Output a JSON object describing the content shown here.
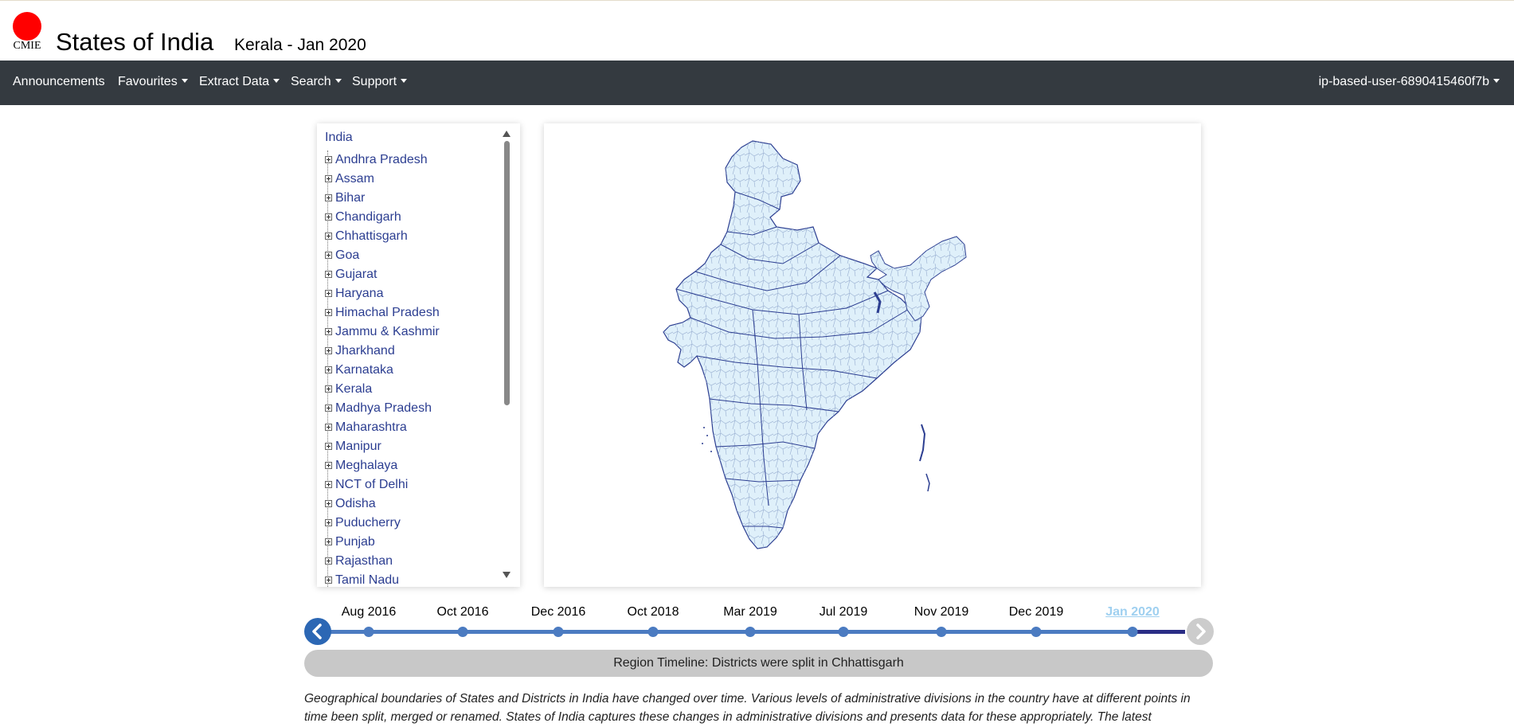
{
  "header": {
    "logo_text": "CMIE",
    "title": "States of India",
    "subtitle": "Kerala - Jan 2020",
    "colors": {
      "logo": "#ff0000"
    }
  },
  "navbar": {
    "items": [
      {
        "label": "Announcements",
        "dropdown": false
      },
      {
        "label": "Favourites",
        "dropdown": true
      },
      {
        "label": "Extract Data",
        "dropdown": true
      },
      {
        "label": "Search",
        "dropdown": true
      },
      {
        "label": "Support",
        "dropdown": true
      }
    ],
    "user": {
      "label": "ip-based-user-6890415460f7b",
      "dropdown": true
    },
    "colors": {
      "background": "#343a40",
      "text": "#ffffff"
    }
  },
  "tree": {
    "root": "India",
    "items": [
      "Andhra Pradesh",
      "Assam",
      "Bihar",
      "Chandigarh",
      "Chhattisgarh",
      "Goa",
      "Gujarat",
      "Haryana",
      "Himachal Pradesh",
      "Jammu & Kashmir",
      "Jharkhand",
      "Karnataka",
      "Kerala",
      "Madhya Pradesh",
      "Maharashtra",
      "Manipur",
      "Meghalaya",
      "NCT of Delhi",
      "Odisha",
      "Puducherry",
      "Punjab",
      "Rajasthan",
      "Tamil Nadu"
    ],
    "expander_icon": "plus-square-icon",
    "colors": {
      "link": "#2c3e91"
    }
  },
  "map": {
    "colors": {
      "fill": "#dff0fa",
      "district_border": "#9fb5d5",
      "state_border": "#2c3e91"
    }
  },
  "timeline": {
    "points": [
      {
        "label": "Aug 2016"
      },
      {
        "label": "Oct 2016"
      },
      {
        "label": "Dec 2016"
      },
      {
        "label": "Oct 2018"
      },
      {
        "label": "Mar 2019"
      },
      {
        "label": "Jul 2019"
      },
      {
        "label": "Nov 2019"
      },
      {
        "label": "Dec 2019"
      },
      {
        "label": "Jan 2020"
      }
    ],
    "active": "Jan 2020",
    "prev_icon": "chevron-left-icon",
    "next_icon": "chevron-right-icon",
    "colors": {
      "line": "#4b7bc1",
      "active_label": "#9fd0f0",
      "prev_button": "#2c67b4",
      "next_button": "#cccccc"
    }
  },
  "region_timeline": "Region Timeline: Districts were split in Chhattisgarh",
  "description": "Geographical boundaries of States and Districts in India have changed over time. Various levels of administrative divisions in the country have at different points in time been split, merged or renamed. States of India captures these changes in administrative divisions and presents data for these appropriately. The latest"
}
